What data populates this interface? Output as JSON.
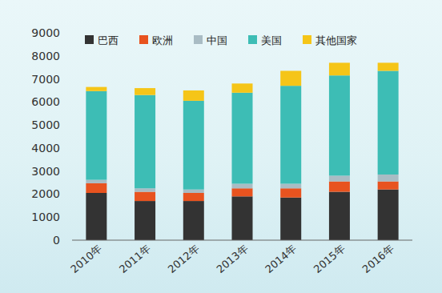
{
  "chart_data": {
    "type": "bar",
    "stacked": true,
    "legend": "top",
    "categories": [
      "2010年",
      "2011年",
      "2012年",
      "2013年",
      "2014年",
      "2015年",
      "2016年"
    ],
    "series": [
      {
        "name": "巴西",
        "color": "#333333",
        "values": [
          2050,
          1700,
          1700,
          1900,
          1850,
          2100,
          2200
        ]
      },
      {
        "name": "欧洲",
        "color": "#e8531f",
        "values": [
          420,
          400,
          350,
          350,
          400,
          450,
          350
        ]
      },
      {
        "name": "中国",
        "color": "#a9bcc4",
        "values": [
          150,
          150,
          150,
          200,
          200,
          250,
          300
        ]
      },
      {
        "name": "美国",
        "color": "#3dbdb5",
        "values": [
          3850,
          4050,
          3850,
          3950,
          4250,
          4350,
          4500
        ]
      },
      {
        "name": "其他国家",
        "color": "#f5c518",
        "values": [
          180,
          300,
          450,
          400,
          650,
          550,
          350
        ]
      }
    ],
    "ylim": [
      0,
      9000
    ],
    "yticks": [
      0,
      1000,
      2000,
      3000,
      4000,
      5000,
      6000,
      7000,
      8000,
      9000
    ]
  }
}
